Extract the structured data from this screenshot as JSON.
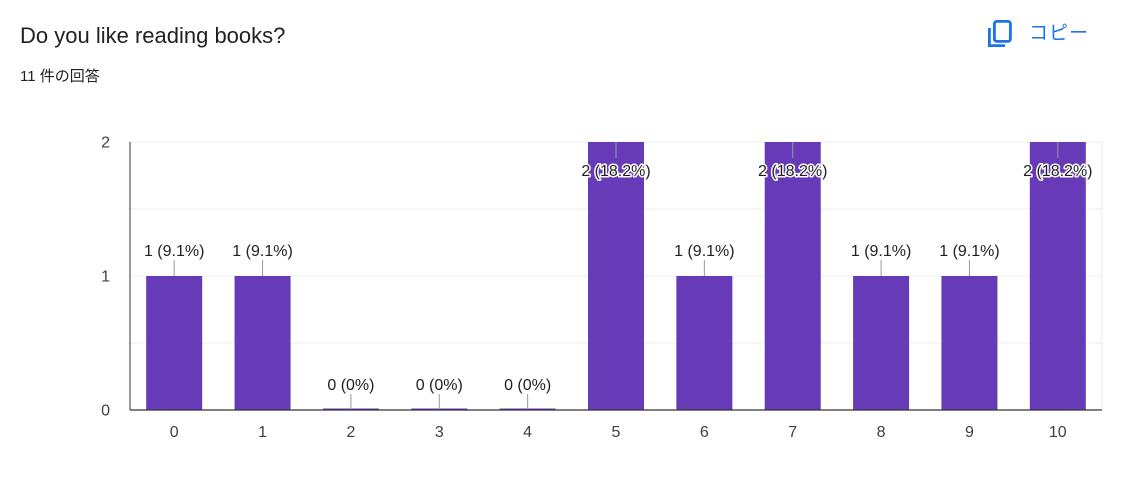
{
  "question": {
    "title": "Do you like reading books?",
    "response_count": "11 件の回答"
  },
  "toolbar": {
    "copy_label": "コピー",
    "copy_icon": "copy-icon",
    "accent_color": "#1a73e8"
  },
  "chart_data": {
    "type": "bar",
    "title": "Do you like reading books?",
    "xlabel": "",
    "ylabel": "",
    "categories": [
      "0",
      "1",
      "2",
      "3",
      "4",
      "5",
      "6",
      "7",
      "8",
      "9",
      "10"
    ],
    "values": [
      1,
      1,
      0,
      0,
      0,
      2,
      1,
      2,
      1,
      1,
      2
    ],
    "data_labels": [
      "1 (9.1%)",
      "1 (9.1%)",
      "0 (0%)",
      "0 (0%)",
      "0 (0%)",
      "2 (18.2%)",
      "1 (9.1%)",
      "2 (18.2%)",
      "1 (9.1%)",
      "1 (9.1%)",
      "2 (18.2%)"
    ],
    "ylim": [
      0,
      2
    ],
    "yticks": [
      "0",
      "1",
      "2"
    ],
    "grid": true,
    "bar_color": "#673ab7"
  }
}
